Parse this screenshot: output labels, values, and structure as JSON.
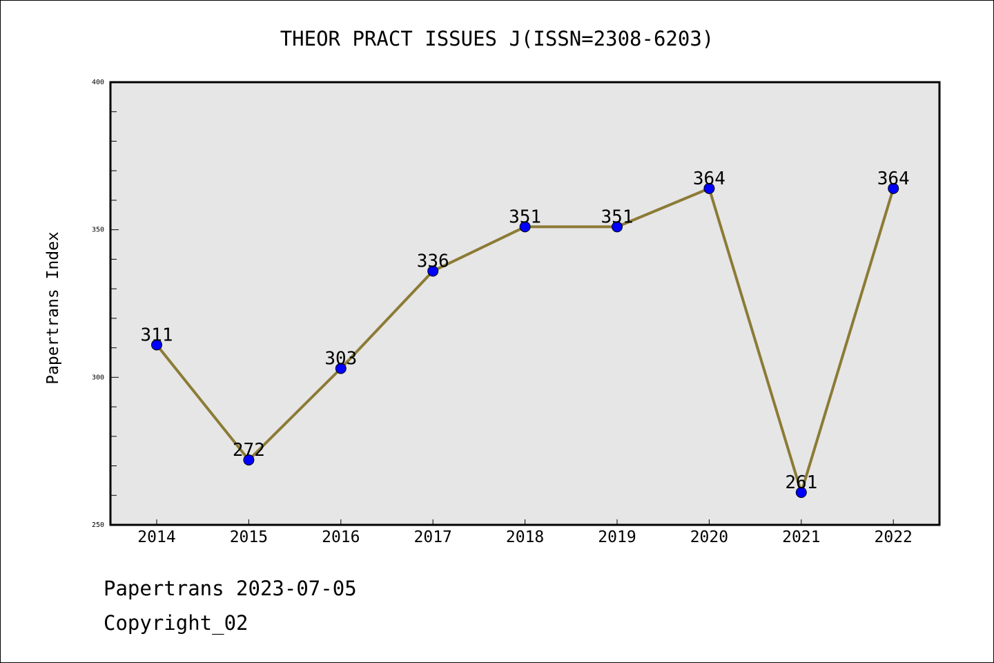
{
  "chart_data": {
    "type": "line",
    "title": "THEOR PRACT ISSUES J(ISSN=2308-6203)",
    "xlabel": "",
    "ylabel": "Papertrans Index",
    "categories": [
      "2014",
      "2015",
      "2016",
      "2017",
      "2018",
      "2019",
      "2020",
      "2021",
      "2022"
    ],
    "values": [
      311,
      272,
      303,
      336,
      351,
      351,
      364,
      261,
      364
    ],
    "data_labels": [
      "311",
      "272",
      "303",
      "336",
      "351",
      "351",
      "364",
      "261",
      "364"
    ],
    "ylim": [
      250,
      400
    ],
    "yticks": [
      250,
      300,
      350,
      400
    ],
    "ytick_labels": [
      "250",
      "300",
      "350",
      "400"
    ],
    "y_minor_step": 10,
    "grid": false,
    "colors": {
      "line": "#8c7b36",
      "marker": "#0000ff",
      "plot_background": "#e6e6e6"
    }
  },
  "footer": {
    "source": "Papertrans 2023-07-05",
    "copyright": "Copyright_02"
  }
}
